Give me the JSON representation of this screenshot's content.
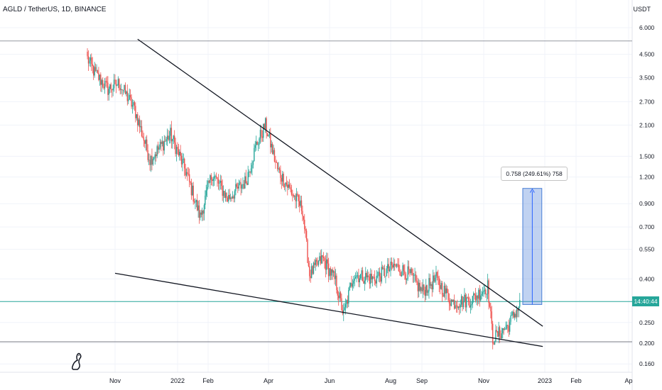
{
  "header": {
    "symbol_title": "AGLD / TetherUS, 1D, BINANCE",
    "currency": "USDT"
  },
  "price_tag": {
    "label": "14:40:44",
    "color": "#26a69a"
  },
  "measure_tool": {
    "label": "0.758 (249.61%) 758",
    "fill_color": "#4a7fd6"
  },
  "colors": {
    "up": "#26a69a",
    "down": "#ef5350",
    "trendline": "#131722",
    "grid": "#f0f3fa",
    "hline_top": "#9598a1",
    "hline_current": "#26a69a",
    "hline_bottom": "#787b86",
    "tick_text": "#131722"
  },
  "icons": {
    "logo": "tradingview-logo-icon"
  },
  "chart_data": {
    "type": "candlestick",
    "title": "AGLD / TetherUS, 1D, BINANCE",
    "y_scale": "log",
    "ylim": [
      0.15,
      7.2
    ],
    "y_ticks": [
      {
        "value": 6.0,
        "label": "6.000"
      },
      {
        "value": 4.5,
        "label": "4.500"
      },
      {
        "value": 3.5,
        "label": "3.500"
      },
      {
        "value": 2.7,
        "label": "2.700"
      },
      {
        "value": 2.1,
        "label": "2.100"
      },
      {
        "value": 1.5,
        "label": "1.500"
      },
      {
        "value": 1.2,
        "label": "1.200"
      },
      {
        "value": 0.9,
        "label": "0.900"
      },
      {
        "value": 0.7,
        "label": "0.700"
      },
      {
        "value": 0.55,
        "label": "0.550"
      },
      {
        "value": 0.4,
        "label": "0.400"
      },
      {
        "value": 0.25,
        "label": "0.250"
      },
      {
        "value": 0.2,
        "label": "0.200"
      },
      {
        "value": 0.16,
        "label": "0.160"
      }
    ],
    "x_ticks": [
      {
        "date": "2021-11-01",
        "label": "Nov"
      },
      {
        "date": "2022-01-01",
        "label": "2022"
      },
      {
        "date": "2022-02-01",
        "label": "Feb"
      },
      {
        "date": "2022-04-01",
        "label": "Apr"
      },
      {
        "date": "2022-06-01",
        "label": "Jun"
      },
      {
        "date": "2022-08-01",
        "label": "Aug"
      },
      {
        "date": "2022-09-01",
        "label": "Sep"
      },
      {
        "date": "2022-11-01",
        "label": "Nov"
      },
      {
        "date": "2023-01-01",
        "label": "2023"
      },
      {
        "date": "2023-02-01",
        "label": "Feb"
      },
      {
        "date": "2023-04-01",
        "label": "Ap"
      }
    ],
    "price_path": [
      {
        "date": "2021-10-05",
        "close": 4.3
      },
      {
        "date": "2021-10-12",
        "close": 3.7
      },
      {
        "date": "2021-10-25",
        "close": 3.1
      },
      {
        "date": "2021-11-05",
        "close": 3.3
      },
      {
        "date": "2021-11-20",
        "close": 2.5
      },
      {
        "date": "2021-12-05",
        "close": 1.45
      },
      {
        "date": "2021-12-25",
        "close": 1.9
      },
      {
        "date": "2022-01-10",
        "close": 1.25
      },
      {
        "date": "2022-01-24",
        "close": 0.78
      },
      {
        "date": "2022-02-05",
        "close": 1.25
      },
      {
        "date": "2022-02-20",
        "close": 0.95
      },
      {
        "date": "2022-03-10",
        "close": 1.15
      },
      {
        "date": "2022-03-20",
        "close": 1.7
      },
      {
        "date": "2022-03-29",
        "close": 2.1
      },
      {
        "date": "2022-04-10",
        "close": 1.3
      },
      {
        "date": "2022-04-25",
        "close": 1.0
      },
      {
        "date": "2022-05-05",
        "close": 0.85
      },
      {
        "date": "2022-05-12",
        "close": 0.42
      },
      {
        "date": "2022-05-25",
        "close": 0.5
      },
      {
        "date": "2022-06-07",
        "close": 0.39
      },
      {
        "date": "2022-06-15",
        "close": 0.27
      },
      {
        "date": "2022-06-25",
        "close": 0.42
      },
      {
        "date": "2022-07-15",
        "close": 0.4
      },
      {
        "date": "2022-08-05",
        "close": 0.46
      },
      {
        "date": "2022-08-20",
        "close": 0.42
      },
      {
        "date": "2022-09-01",
        "close": 0.35
      },
      {
        "date": "2022-09-15",
        "close": 0.4
      },
      {
        "date": "2022-10-01",
        "close": 0.31
      },
      {
        "date": "2022-10-20",
        "close": 0.32
      },
      {
        "date": "2022-11-05",
        "close": 0.37
      },
      {
        "date": "2022-11-10",
        "close": 0.21
      },
      {
        "date": "2022-11-25",
        "close": 0.24
      },
      {
        "date": "2022-12-08",
        "close": 0.31
      }
    ],
    "horizontal_lines": [
      {
        "price": 5.2
      },
      {
        "price": 0.3135
      },
      {
        "price": 0.203
      }
    ],
    "trendlines": [
      {
        "start": {
          "date": "2021-11-23",
          "price": 5.3
        },
        "end": {
          "date": "2022-12-30",
          "price": 0.24
        }
      },
      {
        "start": {
          "date": "2021-11-01",
          "price": 0.425
        },
        "end": {
          "date": "2022-12-30",
          "price": 0.193
        }
      }
    ],
    "measure": {
      "start_date": "2022-12-10",
      "end_date": "2022-12-29",
      "low": 0.3035,
      "high": 1.061,
      "change": 0.758,
      "change_pct": 249.61,
      "bars": 758
    }
  }
}
